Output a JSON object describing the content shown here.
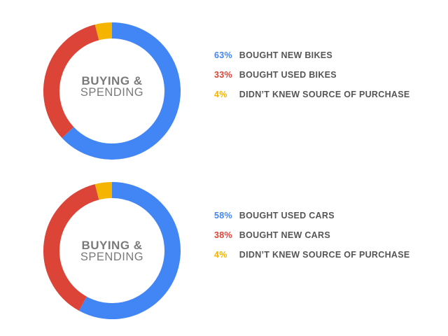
{
  "chart_data": [
    {
      "type": "pie",
      "center_label": [
        "BUYING &",
        "SPENDING"
      ],
      "slices": [
        {
          "label": "BOUGHT NEW BIKES",
          "value": 63,
          "display": "63%",
          "color": "#4285f4"
        },
        {
          "label": "BOUGHT USED BIKES",
          "value": 33,
          "display": "33%",
          "color": "#db4437"
        },
        {
          "label": "DIDN’T KNEW SOURCE OF PURCHASE",
          "value": 4,
          "display": "4%",
          "color": "#f4b400"
        }
      ],
      "legend_position": "right"
    },
    {
      "type": "pie",
      "center_label": [
        "BUYING &",
        "SPENDING"
      ],
      "slices": [
        {
          "label": "BOUGHT USED CARS",
          "value": 58,
          "display": "58%",
          "color": "#4285f4"
        },
        {
          "label": "BOUGHT NEW CARS",
          "value": 38,
          "display": "38%",
          "color": "#db4437"
        },
        {
          "label": "DIDN’T KNEW SOURCE OF PURCHASE",
          "value": 4,
          "display": "4%",
          "color": "#f4b400"
        }
      ],
      "legend_position": "right"
    }
  ],
  "colors": {
    "blue": "#4285f4",
    "red": "#db4437",
    "yellow": "#f4b400",
    "label_gray": "#555555",
    "center_gray": "#7a7a7a"
  }
}
